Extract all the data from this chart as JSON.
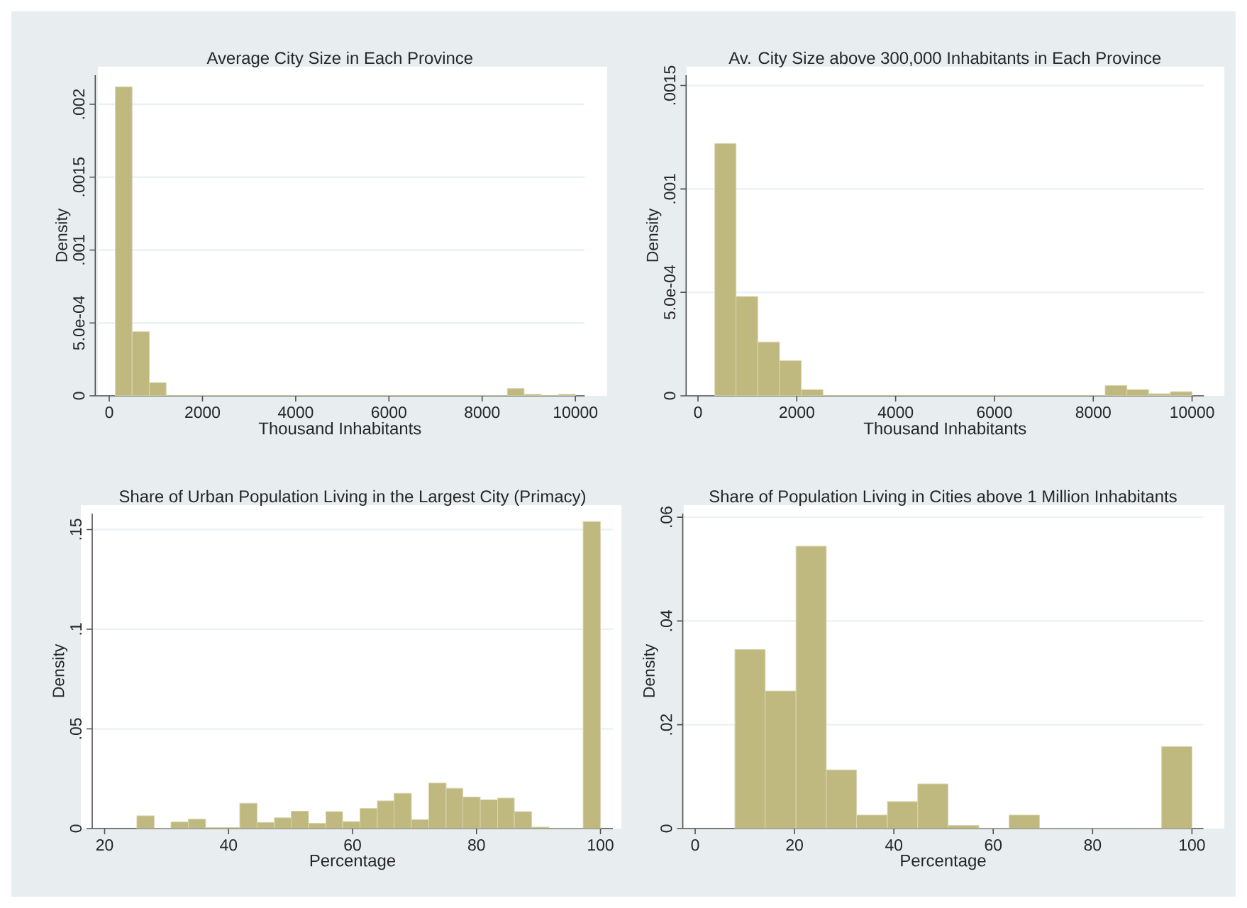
{
  "chart_data": [
    {
      "type": "histogram",
      "title": "Average City Size in Each Province",
      "xlabel": "Thousand Inhabitants",
      "ylabel": "Density",
      "color": "#bfb97f",
      "grid": "y",
      "bins": [
        130,
        490,
        860,
        1220,
        8540,
        8900,
        9270,
        9640,
        10000
      ],
      "values": [
        0.00212,
        0.00044,
        9e-05,
        0,
        5e-05,
        1e-05,
        0,
        1e-05
      ],
      "xlim": [
        -300,
        10200
      ],
      "ylim": [
        0,
        0.0022
      ],
      "xticks": [
        0,
        2000,
        4000,
        6000,
        8000,
        10000
      ],
      "yticks": [
        0,
        {
          "value": 0.0005,
          "label": "5.0e-04"
        },
        {
          "value": 0.001,
          "label": ".001"
        },
        {
          "value": 0.0015,
          "label": ".0015"
        },
        {
          "value": 0.002,
          "label": ".002"
        }
      ]
    },
    {
      "type": "histogram",
      "title": "Av. City Size above 300,000 Inhabitants in Each Province",
      "xlabel": "Thousand Inhabitants",
      "ylabel": "Density",
      "color": "#bfb97f",
      "grid": "y",
      "bins": [
        340,
        770,
        1210,
        1650,
        2090,
        2530,
        8240,
        8680,
        9120,
        9560,
        10000
      ],
      "values": [
        0.00122,
        0.00048,
        0.00026,
        0.00017,
        3e-05,
        0,
        5e-05,
        3e-05,
        1e-05,
        2e-05
      ],
      "xlim": [
        -240,
        10240
      ],
      "ylim": [
        0,
        0.00155
      ],
      "xticks": [
        0,
        2000,
        4000,
        6000,
        8000,
        10000
      ],
      "yticks": [
        0,
        {
          "value": 0.0005,
          "label": "5.0e-04"
        },
        {
          "value": 0.001,
          "label": ".001"
        },
        {
          "value": 0.0015,
          "label": ".0015"
        }
      ]
    },
    {
      "type": "histogram",
      "title": "Share of Urban Population Living in the Largest City (Primacy)",
      "xlabel": "Percentage",
      "ylabel": "Density",
      "color": "#bfb97f",
      "grid": "y",
      "bins": [
        25.2,
        28.0,
        30.7,
        33.5,
        36.3,
        39.0,
        41.8,
        44.6,
        47.4,
        50.1,
        52.9,
        55.7,
        58.4,
        61.2,
        64.0,
        66.7,
        69.5,
        72.3,
        75.1,
        77.8,
        80.6,
        83.4,
        86.1,
        88.9,
        91.7,
        97.2,
        100.0
      ],
      "values": [
        0.0064,
        0,
        0.0033,
        0.0047,
        0.0005,
        0.0005,
        0.0127,
        0.0031,
        0.0054,
        0.0087,
        0.0026,
        0.0085,
        0.0035,
        0.0101,
        0.0139,
        0.0177,
        0.0045,
        0.0228,
        0.0202,
        0.0158,
        0.0144,
        0.0153,
        0.0085,
        0.0007,
        0,
        0.154
      ],
      "xlim": [
        18,
        102
      ],
      "ylim": [
        0,
        0.158
      ],
      "xticks": [
        20,
        40,
        60,
        80,
        100
      ],
      "yticks": [
        0,
        {
          "value": 0.05,
          "label": ".05"
        },
        {
          "value": 0.1,
          "label": ".1"
        },
        {
          "value": 0.15,
          "label": ".15"
        }
      ]
    },
    {
      "type": "histogram",
      "title": "Share of Population Living in Cities above 1 Million Inhabitants",
      "xlabel": "Percentage",
      "ylabel": "Density",
      "color": "#bfb97f",
      "grid": "y",
      "bins": [
        8.0,
        14.1,
        20.3,
        26.4,
        32.5,
        38.7,
        44.8,
        50.9,
        57.1,
        63.2,
        69.3,
        93.9,
        100.0
      ],
      "values": [
        0.0345,
        0.0265,
        0.0544,
        0.0113,
        0.0026,
        0.0052,
        0.0086,
        0.0006,
        0,
        0.0026,
        0,
        0.0158
      ],
      "xlim": [
        -2.5,
        102.3
      ],
      "ylim": [
        0,
        0.0607
      ],
      "xticks": [
        0,
        20,
        40,
        60,
        80,
        100
      ],
      "yticks": [
        0,
        {
          "value": 0.02,
          "label": ".02"
        },
        {
          "value": 0.04,
          "label": ".04"
        },
        {
          "value": 0.06,
          "label": ".06"
        }
      ]
    }
  ]
}
